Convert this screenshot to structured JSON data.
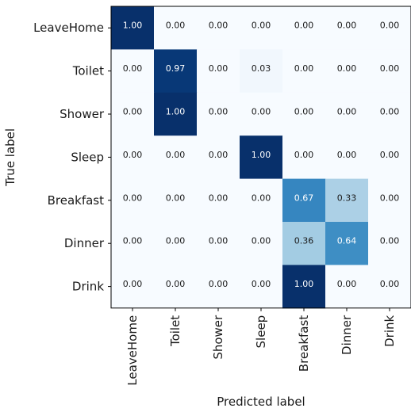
{
  "chart_data": {
    "type": "heatmap",
    "title": "",
    "xlabel": "Predicted label",
    "ylabel": "True label",
    "x_categories": [
      "LeaveHome",
      "Toilet",
      "Shower",
      "Sleep",
      "Breakfast",
      "Dinner",
      "Drink"
    ],
    "y_categories": [
      "LeaveHome",
      "Toilet",
      "Shower",
      "Sleep",
      "Breakfast",
      "Dinner",
      "Drink"
    ],
    "values": [
      [
        1.0,
        0.0,
        0.0,
        0.0,
        0.0,
        0.0,
        0.0
      ],
      [
        0.0,
        0.97,
        0.0,
        0.03,
        0.0,
        0.0,
        0.0
      ],
      [
        0.0,
        1.0,
        0.0,
        0.0,
        0.0,
        0.0,
        0.0
      ],
      [
        0.0,
        0.0,
        0.0,
        1.0,
        0.0,
        0.0,
        0.0
      ],
      [
        0.0,
        0.0,
        0.0,
        0.0,
        0.67,
        0.33,
        0.0
      ],
      [
        0.0,
        0.0,
        0.0,
        0.0,
        0.36,
        0.64,
        0.0
      ],
      [
        0.0,
        0.0,
        0.0,
        0.0,
        1.0,
        0.0,
        0.0
      ]
    ],
    "colormap": "Blues",
    "value_range": [
      0,
      1
    ]
  }
}
